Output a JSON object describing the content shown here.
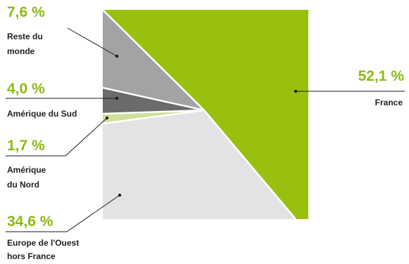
{
  "chart_data": {
    "type": "pie",
    "title": "",
    "colors": {
      "France": "#99c00f",
      "Europe de l'Ouest hors France": "#e3e3e5",
      "Amérique du Nord": "#cfe09a",
      "Amérique du Sud": "#6b6b6d",
      "Reste du monde": "#a3a3a5"
    },
    "slices": [
      {
        "key": "reste_monde",
        "pct_label": "7,6 %",
        "value": 7.6,
        "label_lines": [
          "Reste du",
          "monde"
        ]
      },
      {
        "key": "france",
        "pct_label": "52,1 %",
        "value": 52.1,
        "label_lines": [
          "France"
        ]
      },
      {
        "key": "europe_ouest",
        "pct_label": "34,6 %",
        "value": 34.6,
        "label_lines": [
          "Europe de l'Ouest",
          "hors France"
        ]
      },
      {
        "key": "amerique_nord",
        "pct_label": "1,7 %",
        "value": 1.7,
        "label_lines": [
          "Amérique",
          "du Nord"
        ]
      },
      {
        "key": "amerique_sud",
        "pct_label": "4,0 %",
        "value": 4.0,
        "label_lines": [
          "Amérique du Sud"
        ]
      }
    ]
  }
}
